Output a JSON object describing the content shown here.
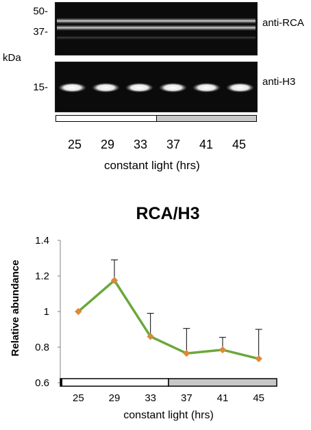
{
  "blot": {
    "kda_label": "kDa",
    "rca_panel": {
      "antibody": "anti-RCA",
      "markers": [
        "50-",
        "37-"
      ]
    },
    "h3_panel": {
      "antibody": "anti-H3",
      "markers": [
        "15-"
      ]
    },
    "lanes": [
      "25",
      "29",
      "33",
      "37",
      "41",
      "45"
    ],
    "light_segments": [
      {
        "condition": "light",
        "color": "#ffffff",
        "fraction": 0.5
      },
      {
        "condition": "dark",
        "color": "#c8c8c8",
        "fraction": 0.5
      }
    ],
    "xlabel": "constant light (hrs)"
  },
  "colors": {
    "blot_background": "#0b0b0b",
    "band": "#e8e8e8",
    "line": "#6aa83a",
    "marker": "#d98b3a",
    "dark_phase": "#c8c8c8"
  },
  "chart_data": {
    "type": "line",
    "title": "RCA/H3",
    "xlabel": "constant light (hrs)",
    "ylabel": "Relative abundance",
    "categories": [
      "25",
      "29",
      "33",
      "37",
      "41",
      "45"
    ],
    "values": [
      1.0,
      1.175,
      0.86,
      0.765,
      0.785,
      0.735
    ],
    "error_upper": [
      0.0,
      0.115,
      0.13,
      0.14,
      0.07,
      0.165
    ],
    "ylim": [
      0.6,
      1.4
    ],
    "yticks": [
      "0.6",
      "0.8",
      "1",
      "1.2",
      "1.4"
    ],
    "grid": false,
    "legend": "none"
  }
}
